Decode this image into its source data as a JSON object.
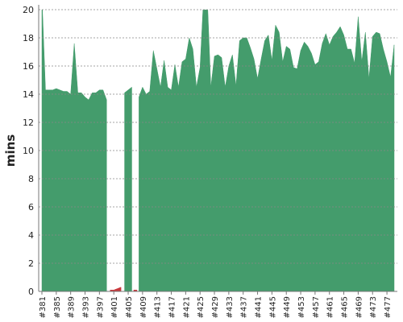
{
  "chart_data": {
    "type": "area",
    "y_label": "mins",
    "categories": [
      "#381",
      null,
      null,
      null,
      "#385",
      null,
      null,
      null,
      "#389",
      null,
      null,
      null,
      "#393",
      null,
      null,
      null,
      "#397",
      null,
      null,
      null,
      "#401",
      null,
      null,
      null,
      "#405",
      null,
      null,
      null,
      "#409",
      null,
      null,
      null,
      "#413",
      null,
      null,
      null,
      "#417",
      null,
      null,
      null,
      "#421",
      null,
      null,
      null,
      "#425",
      null,
      null,
      null,
      "#429",
      null,
      null,
      null,
      "#433",
      null,
      null,
      null,
      "#437",
      null,
      null,
      null,
      "#441",
      null,
      null,
      null,
      "#445",
      null,
      null,
      null,
      "#449",
      null,
      null,
      null,
      "#453",
      null,
      null,
      null,
      "#457",
      null,
      null,
      null,
      "#461",
      null,
      null,
      null,
      "#465",
      null,
      null,
      null,
      "#469",
      null,
      null,
      null,
      "#473",
      null,
      null,
      null,
      "#477",
      null,
      null
    ],
    "series": [
      {
        "color": "#449c6c",
        "values": [
          21,
          14.3,
          14.3,
          14.3,
          14.4,
          14.3,
          14.2,
          14.2,
          14.0,
          17.6,
          14.1,
          14.1,
          13.8,
          13.6,
          14.1,
          14.1,
          14.3,
          14.3,
          13.6,
          null,
          null,
          null,
          null,
          14.1,
          14.3,
          14.5,
          null,
          13.8,
          14.5,
          14.0,
          14.2,
          17.1,
          15.8,
          14.5,
          16.4,
          14.5,
          14.3,
          16.1,
          14.5,
          16.3,
          16.5,
          18.0,
          17.2,
          14.5,
          15.9,
          21,
          21,
          14.5,
          16.7,
          16.8,
          16.6,
          14.5,
          16.0,
          16.8,
          14.6,
          17.8,
          18.0,
          18.0,
          17.3,
          16.5,
          15.1,
          16.5,
          17.8,
          18.2,
          16.4,
          18.9,
          18.4,
          16.3,
          17.4,
          17.2,
          15.9,
          15.8,
          17.1,
          17.7,
          17.4,
          16.9,
          16.1,
          16.3,
          17.6,
          18.3,
          17.5,
          18.1,
          18.4,
          18.8,
          18.2,
          17.2,
          17.2,
          16.2,
          19.5,
          16.3,
          18.4,
          15.1,
          18.1,
          18.4,
          18.3,
          17.2,
          16.3,
          15.2,
          17.5
        ]
      },
      {
        "color": "#c8383c",
        "values": [
          null,
          null,
          null,
          null,
          null,
          null,
          null,
          null,
          null,
          null,
          null,
          null,
          null,
          null,
          null,
          null,
          null,
          null,
          null,
          0.1,
          0.1,
          0.2,
          0.3,
          null,
          null,
          null,
          0.1,
          null,
          null,
          null,
          null,
          null,
          null,
          null,
          null,
          null,
          null,
          null,
          null,
          null,
          null,
          null,
          null,
          null,
          null,
          null,
          null,
          null,
          null,
          null,
          null,
          null,
          null,
          null,
          null,
          null,
          null,
          null,
          null,
          null,
          null,
          null,
          null,
          null,
          null,
          null,
          null,
          null,
          null,
          null,
          null,
          null,
          null,
          null,
          null,
          null,
          null,
          null,
          null,
          null,
          null,
          null,
          null,
          null,
          null,
          null,
          null,
          null,
          null,
          null,
          null,
          null,
          null,
          null,
          null,
          null,
          null,
          null,
          null
        ]
      }
    ],
    "ylim": [
      0,
      20
    ],
    "yticks": [
      0,
      2,
      4,
      6,
      8,
      10,
      12,
      14,
      16,
      18,
      20
    ],
    "grid": true
  }
}
